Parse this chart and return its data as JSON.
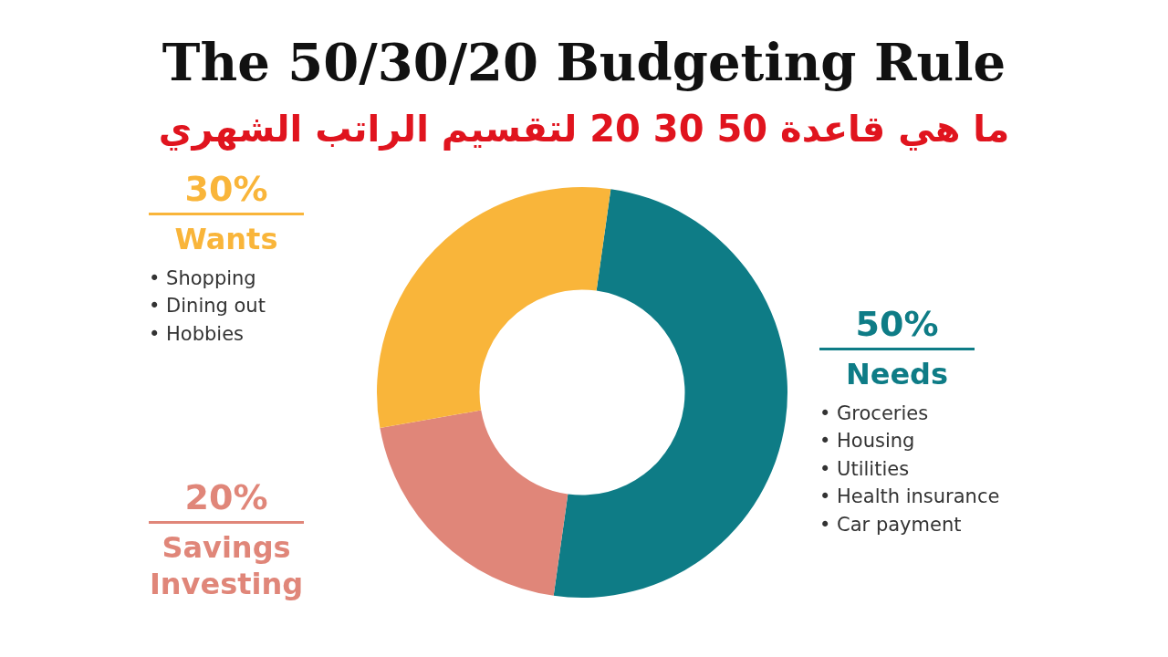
{
  "chart_data": {
    "type": "donut",
    "title": "The 50/30/20 Budgeting Rule",
    "subtitle": "ما هي قاعدة 50 30 20 لتقسيم الراتب الشهري",
    "categories": [
      "Needs",
      "Savings Investing",
      "Wants"
    ],
    "values": [
      50,
      20,
      30
    ],
    "colors": [
      "#0e7c86",
      "#e08679",
      "#f9b53a"
    ],
    "value_labels": [
      "50%",
      "20%",
      "30%"
    ],
    "annotations": [
      {
        "text": "• Groceries",
        "x": "Needs"
      },
      {
        "text": "• Housing",
        "x": "Needs"
      },
      {
        "text": "• Utilities",
        "x": "Needs"
      },
      {
        "text": "• Health insurance",
        "x": "Needs"
      },
      {
        "text": "• Car payment",
        "x": "Needs"
      },
      {
        "text": "• Shopping",
        "x": "Wants"
      },
      {
        "text": "• Dining out",
        "x": "Wants"
      },
      {
        "text": "• Hobbies",
        "x": "Wants"
      }
    ],
    "legend": false
  }
}
